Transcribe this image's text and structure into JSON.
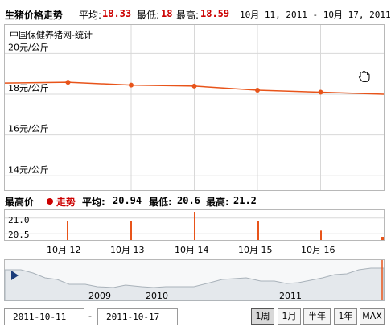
{
  "header": {
    "title": "生猪价格走势",
    "avg_label": "平均:",
    "avg_value": "18.33",
    "min_label": "最低:",
    "min_value": "18",
    "max_label": "最高:",
    "max_value": "18.59",
    "date_range": "10月 11, 2011 - 10月 17, 2011"
  },
  "main_chart": {
    "source_label": "中国保健养猪网-统计",
    "y_tick_labels": [
      "20元/公斤",
      "18元/公斤",
      "16元/公斤",
      "14元/公斤"
    ]
  },
  "sub_header": {
    "title": "最高价",
    "series_label": "走势",
    "avg_label": "平均:",
    "avg_value": "20.94",
    "min_label": "最低:",
    "min_value": "20.6",
    "max_label": "最高:",
    "max_value": "21.2"
  },
  "sub_chart": {
    "y_tick_labels": [
      "21.0",
      "20.5"
    ]
  },
  "x_tick_labels": [
    "10月 12",
    "10月 13",
    "10月 14",
    "10月 15",
    "10月 16"
  ],
  "navigator": {
    "year_labels": [
      "2009",
      "2010",
      "2011"
    ]
  },
  "controls": {
    "from_date": "2011-10-11",
    "separator": "-",
    "to_date": "2011-10-17",
    "ranges": [
      "1周",
      "1月",
      "半年",
      "1年",
      "MAX"
    ],
    "selected_range": "1周"
  },
  "colors": {
    "series": "#e8541a",
    "accent_red": "#cc0000",
    "grid": "#d8d8d8",
    "navigator_fill": "#e4e8ec"
  },
  "chart_data": [
    {
      "type": "line",
      "title": "生猪价格走势",
      "x": [
        "10月 11",
        "10月 12",
        "10月 13",
        "10月 14",
        "10月 15",
        "10月 16",
        "10月 17"
      ],
      "series": [
        {
          "name": "",
          "values": [
            18.55,
            18.59,
            18.45,
            18.4,
            18.2,
            18.1,
            18.0
          ]
        }
      ],
      "ylim": [
        13.3,
        21.4
      ],
      "y_ticks": [
        20,
        18,
        16,
        14
      ],
      "grid": true
    },
    {
      "type": "bar",
      "title": "最高价",
      "x": [
        "10月 12",
        "10月 13",
        "10月 14",
        "10月 15",
        "10月 16"
      ],
      "series": [
        {
          "name": "走势",
          "values": [
            20.9,
            20.9,
            21.2,
            20.9,
            20.6
          ]
        }
      ],
      "ylim": [
        20.3,
        21.2
      ],
      "y_ticks": [
        21.0,
        20.5
      ],
      "grid": true
    }
  ]
}
